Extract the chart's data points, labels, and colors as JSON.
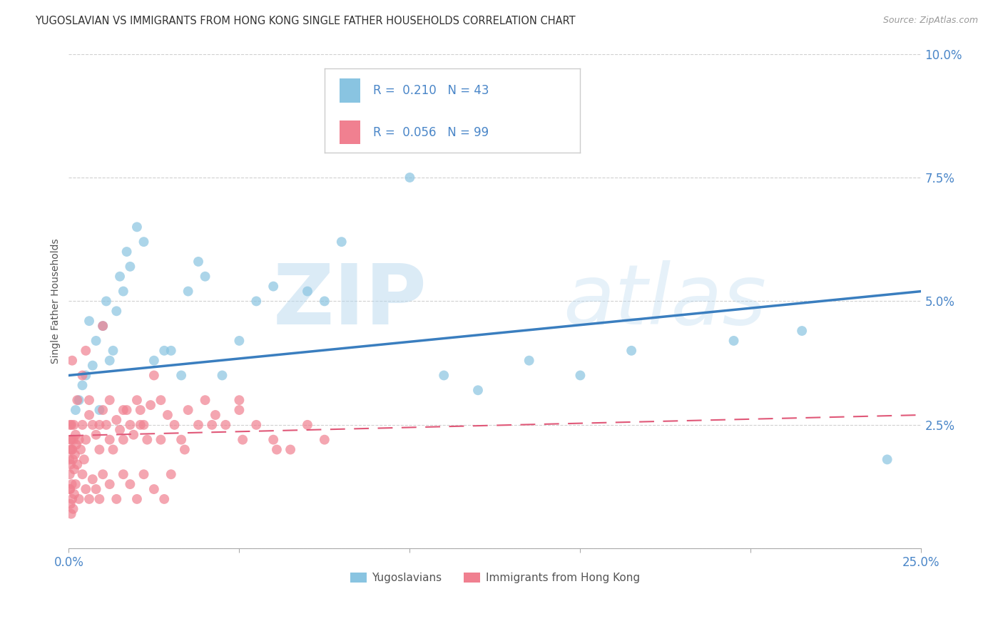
{
  "title": "YUGOSLAVIAN VS IMMIGRANTS FROM HONG KONG SINGLE FATHER HOUSEHOLDS CORRELATION CHART",
  "source": "Source: ZipAtlas.com",
  "ylabel": "Single Father Households",
  "xlabel": "",
  "watermark_zip": "ZIP",
  "watermark_atlas": "atlas",
  "series": [
    {
      "label": "Yugoslavians",
      "R": 0.21,
      "N": 43,
      "color": "#89c4e1",
      "trend_color": "#3a7ebf",
      "trend_style": "solid",
      "trend_x0": 0.0,
      "trend_y0": 0.035,
      "trend_x1": 0.25,
      "trend_y1": 0.052,
      "points_x": [
        0.002,
        0.003,
        0.004,
        0.005,
        0.006,
        0.007,
        0.008,
        0.009,
        0.01,
        0.011,
        0.012,
        0.013,
        0.014,
        0.015,
        0.016,
        0.017,
        0.018,
        0.02,
        0.022,
        0.025,
        0.028,
        0.03,
        0.033,
        0.035,
        0.038,
        0.04,
        0.045,
        0.05,
        0.055,
        0.06,
        0.07,
        0.075,
        0.08,
        0.09,
        0.1,
        0.11,
        0.12,
        0.135,
        0.15,
        0.165,
        0.195,
        0.215,
        0.24
      ],
      "points_y": [
        0.028,
        0.03,
        0.033,
        0.035,
        0.046,
        0.037,
        0.042,
        0.028,
        0.045,
        0.05,
        0.038,
        0.04,
        0.048,
        0.055,
        0.052,
        0.06,
        0.057,
        0.065,
        0.062,
        0.038,
        0.04,
        0.04,
        0.035,
        0.052,
        0.058,
        0.055,
        0.035,
        0.042,
        0.05,
        0.053,
        0.052,
        0.05,
        0.062,
        0.088,
        0.075,
        0.035,
        0.032,
        0.038,
        0.035,
        0.04,
        0.042,
        0.044,
        0.018
      ]
    },
    {
      "label": "Immigrants from Hong Kong",
      "R": 0.056,
      "N": 99,
      "color": "#f08090",
      "trend_color": "#e05878",
      "trend_style": "dashed",
      "trend_x0": 0.0,
      "trend_y0": 0.0228,
      "trend_x1": 0.25,
      "trend_y1": 0.027,
      "points_x": [
        0.0002,
        0.0003,
        0.0004,
        0.0005,
        0.0006,
        0.0007,
        0.0008,
        0.0009,
        0.001,
        0.0012,
        0.0014,
        0.0016,
        0.0018,
        0.002,
        0.0022,
        0.0025,
        0.003,
        0.0035,
        0.004,
        0.0045,
        0.005,
        0.006,
        0.007,
        0.008,
        0.009,
        0.01,
        0.011,
        0.012,
        0.013,
        0.014,
        0.015,
        0.016,
        0.017,
        0.018,
        0.019,
        0.02,
        0.021,
        0.022,
        0.023,
        0.024,
        0.025,
        0.027,
        0.029,
        0.031,
        0.033,
        0.035,
        0.038,
        0.04,
        0.043,
        0.046,
        0.05,
        0.055,
        0.06,
        0.065,
        0.07,
        0.075,
        0.0003,
        0.0005,
        0.0007,
        0.001,
        0.0013,
        0.0016,
        0.002,
        0.003,
        0.004,
        0.005,
        0.006,
        0.007,
        0.008,
        0.009,
        0.01,
        0.012,
        0.014,
        0.016,
        0.018,
        0.02,
        0.022,
        0.025,
        0.028,
        0.03,
        0.0004,
        0.0006,
        0.0009,
        0.0015,
        0.0025,
        0.004,
        0.006,
        0.009,
        0.012,
        0.016,
        0.021,
        0.027,
        0.034,
        0.042,
        0.051,
        0.061,
        0.001,
        0.005,
        0.01,
        0.05
      ],
      "points_y": [
        0.018,
        0.015,
        0.012,
        0.02,
        0.017,
        0.022,
        0.025,
        0.013,
        0.02,
        0.018,
        0.022,
        0.016,
        0.019,
        0.023,
        0.021,
        0.017,
        0.022,
        0.02,
        0.025,
        0.018,
        0.022,
        0.027,
        0.025,
        0.023,
        0.02,
        0.028,
        0.025,
        0.022,
        0.02,
        0.026,
        0.024,
        0.022,
        0.028,
        0.025,
        0.023,
        0.03,
        0.028,
        0.025,
        0.022,
        0.029,
        0.035,
        0.03,
        0.027,
        0.025,
        0.022,
        0.028,
        0.025,
        0.03,
        0.027,
        0.025,
        0.028,
        0.025,
        0.022,
        0.02,
        0.025,
        0.022,
        0.012,
        0.009,
        0.007,
        0.01,
        0.008,
        0.011,
        0.013,
        0.01,
        0.015,
        0.012,
        0.01,
        0.014,
        0.012,
        0.01,
        0.015,
        0.013,
        0.01,
        0.015,
        0.013,
        0.01,
        0.015,
        0.012,
        0.01,
        0.015,
        0.025,
        0.022,
        0.02,
        0.025,
        0.03,
        0.035,
        0.03,
        0.025,
        0.03,
        0.028,
        0.025,
        0.022,
        0.02,
        0.025,
        0.022,
        0.02,
        0.038,
        0.04,
        0.045,
        0.03
      ]
    }
  ],
  "xlim": [
    0.0,
    0.25
  ],
  "ylim": [
    0.0,
    0.1
  ],
  "xticks": [
    0.0,
    0.05,
    0.1,
    0.15,
    0.2,
    0.25
  ],
  "yticks": [
    0.0,
    0.025,
    0.05,
    0.075,
    0.1
  ],
  "ytick_labels": [
    "",
    "2.5%",
    "5.0%",
    "7.5%",
    "10.0%"
  ],
  "xtick_labels": [
    "0.0%",
    "",
    "",
    "",
    "",
    "25.0%"
  ],
  "tick_color": "#4a86c8",
  "grid_color": "#d0d0d0",
  "background_color": "#ffffff",
  "title_fontsize": 11,
  "axis_label_fontsize": 10
}
